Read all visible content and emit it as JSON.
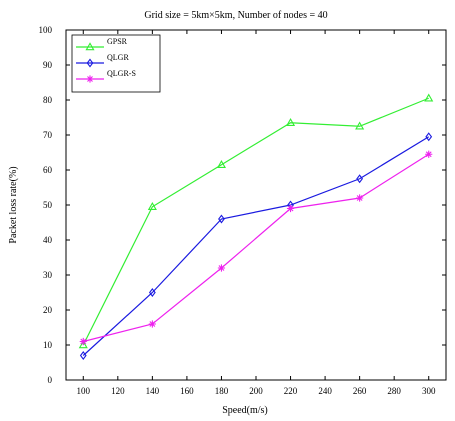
{
  "chart_data": {
    "type": "line",
    "title": "Grid size = 5km×5km, Number of nodes = 40",
    "xlabel": "Speed(m/s)",
    "ylabel": "Packet loss rate(%)",
    "xlim": [
      90,
      310
    ],
    "ylim": [
      0,
      100
    ],
    "xticks": [
      "100",
      "120",
      "140",
      "160",
      "180",
      "200",
      "220",
      "240",
      "260",
      "280",
      "300"
    ],
    "yticks": [
      "0",
      "10",
      "20",
      "30",
      "40",
      "50",
      "60",
      "70",
      "80",
      "90",
      "100"
    ],
    "grid": false,
    "legend_position": "top-left",
    "x": [
      100,
      140,
      180,
      220,
      260,
      300
    ],
    "series": [
      {
        "name": "GPSR",
        "color": "#33ee33",
        "marker": "triangle",
        "values": [
          10,
          49.5,
          61.5,
          73.5,
          72.5,
          80.5
        ]
      },
      {
        "name": "QLGR",
        "color": "#1a1ae0",
        "marker": "diamond",
        "values": [
          7,
          25,
          46,
          50,
          57.5,
          69.5
        ]
      },
      {
        "name": "QLGR-S",
        "color": "#ee22ee",
        "marker": "star",
        "values": [
          11,
          16,
          32,
          49,
          52,
          64.5
        ]
      }
    ]
  }
}
